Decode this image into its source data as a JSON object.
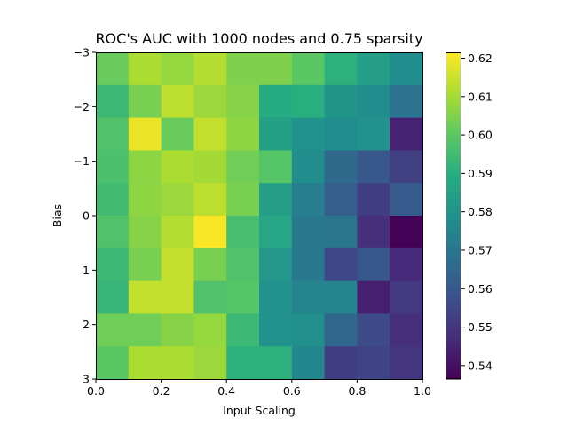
{
  "chart_data": {
    "type": "heatmap",
    "title": "ROC's AUC with 1000 nodes and 0.75 sparsity",
    "xlabel": "Input Scaling",
    "ylabel": "Bias",
    "xlim": [
      0.0,
      1.0
    ],
    "ylim": [
      -3,
      3
    ],
    "y_inverted": true,
    "x_ticks": [
      "0.0",
      "0.2",
      "0.4",
      "0.6",
      "0.8",
      "1.0"
    ],
    "y_ticks": [
      "−3",
      "−2",
      "−1",
      "0",
      "1",
      "2",
      "3"
    ],
    "colormap": "viridis",
    "colorbar": {
      "range": [
        0.5365,
        0.6215
      ],
      "ticks": [
        "0.54",
        "0.55",
        "0.56",
        "0.57",
        "0.58",
        "0.59",
        "0.60",
        "0.61",
        "0.62"
      ]
    },
    "grid": false,
    "rows": 10,
    "cols": 10,
    "values": [
      [
        0.602,
        0.611,
        0.608,
        0.612,
        0.605,
        0.605,
        0.6,
        0.591,
        0.584,
        0.578
      ],
      [
        0.594,
        0.604,
        0.613,
        0.609,
        0.606,
        0.589,
        0.59,
        0.581,
        0.578,
        0.569
      ],
      [
        0.598,
        0.619,
        0.602,
        0.614,
        0.607,
        0.585,
        0.58,
        0.578,
        0.58,
        0.545
      ],
      [
        0.597,
        0.607,
        0.611,
        0.61,
        0.603,
        0.599,
        0.578,
        0.566,
        0.56,
        0.553
      ],
      [
        0.595,
        0.607,
        0.609,
        0.613,
        0.604,
        0.584,
        0.573,
        0.562,
        0.552,
        0.561
      ],
      [
        0.598,
        0.606,
        0.612,
        0.621,
        0.596,
        0.587,
        0.571,
        0.57,
        0.548,
        0.537
      ],
      [
        0.594,
        0.604,
        0.614,
        0.604,
        0.598,
        0.582,
        0.571,
        0.555,
        0.56,
        0.547
      ],
      [
        0.593,
        0.614,
        0.614,
        0.598,
        0.599,
        0.58,
        0.575,
        0.575,
        0.544,
        0.551
      ],
      [
        0.603,
        0.603,
        0.606,
        0.608,
        0.594,
        0.58,
        0.579,
        0.565,
        0.556,
        0.548
      ],
      [
        0.6,
        0.611,
        0.611,
        0.609,
        0.591,
        0.591,
        0.576,
        0.552,
        0.554,
        0.55
      ]
    ]
  }
}
